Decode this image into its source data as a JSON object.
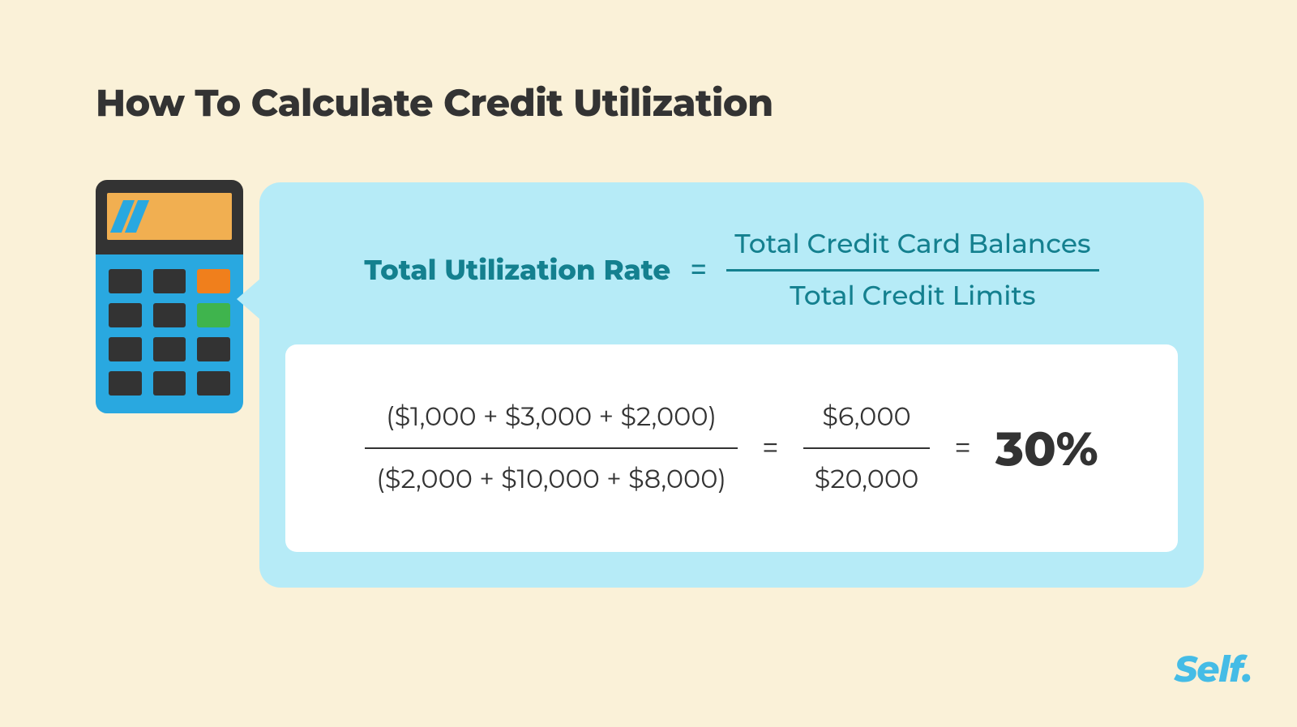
{
  "title": "How To Calculate Credit Utilization",
  "formula": {
    "label": "Total Utilization Rate",
    "equals": "=",
    "numerator": "Total Credit Card Balances",
    "denominator": "Total Credit Limits",
    "label_color": "#14808f",
    "label_fontsize": 34,
    "fraction_fontsize": 33,
    "bar_color": "#14808f"
  },
  "example": {
    "frac1_num": "($1,000 + $3,000 + $2,000)",
    "frac1_den": "($2,000 + $10,000 + $8,000)",
    "eq1": "=",
    "frac2_num": "$6,000",
    "frac2_den": "$20,000",
    "eq2": "=",
    "result": "30%",
    "text_color": "#333333",
    "value_fontsize": 32,
    "result_fontsize": 58,
    "background_color": "#ffffff"
  },
  "bubble": {
    "background_color": "#b6ebf7",
    "border_radius": 26
  },
  "calculator": {
    "body_color": "#29a8e0",
    "top_color": "#333333",
    "screen_color": "#f1af51",
    "stripe_color": "#29a8e0",
    "buttons": [
      {
        "color": "#333333"
      },
      {
        "color": "#333333"
      },
      {
        "color": "#f07f1c"
      },
      {
        "color": "#333333"
      },
      {
        "color": "#333333"
      },
      {
        "color": "#3fb44d"
      },
      {
        "color": "#333333"
      },
      {
        "color": "#333333"
      },
      {
        "color": "#333333"
      },
      {
        "color": "#333333"
      },
      {
        "color": "#333333"
      },
      {
        "color": "#333333"
      }
    ]
  },
  "brand": {
    "text": "Self.",
    "color": "#45bce6"
  },
  "page": {
    "background_color": "#faf1d8",
    "title_color": "#333333",
    "title_fontsize": 46
  }
}
